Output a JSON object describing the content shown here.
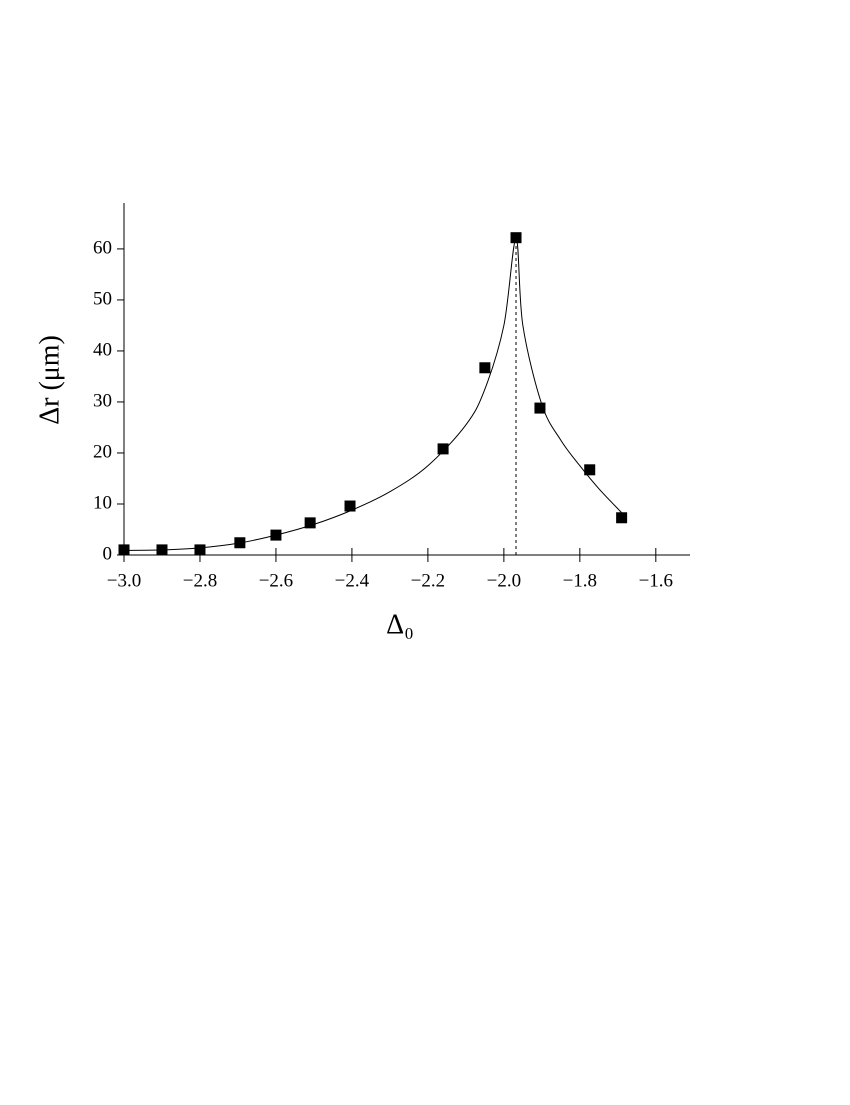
{
  "chart_data": {
    "type": "scatter",
    "x_label": "Δ₀",
    "y_label": "Δr (μm)",
    "xlim": [
      -3.0,
      -1.51
    ],
    "ylim": [
      0,
      69
    ],
    "xticks": [
      {
        "value": -3.0,
        "label": "−3.0"
      },
      {
        "value": -2.8,
        "label": "−2.8"
      },
      {
        "value": -2.6,
        "label": "−2.6"
      },
      {
        "value": -2.4,
        "label": "−2.4"
      },
      {
        "value": -2.2,
        "label": "−2.2"
      },
      {
        "value": -2.0,
        "label": "−2.0"
      },
      {
        "value": -1.8,
        "label": "−1.8"
      },
      {
        "value": -1.6,
        "label": "−1.6"
      }
    ],
    "yticks": [
      0,
      10,
      20,
      30,
      40,
      50,
      60
    ],
    "color": "#000000",
    "x": [
      -3.0,
      -2.9,
      -2.8,
      -2.695,
      -2.6,
      -2.51,
      -2.405,
      -2.16,
      -2.05,
      -1.968,
      -1.905,
      -1.774,
      -1.69
    ],
    "values": [
      1.0,
      1.0,
      1.0,
      2.4,
      3.9,
      6.3,
      9.6,
      20.8,
      36.7,
      62.2,
      28.8,
      16.7,
      7.3
    ],
    "fit": {
      "x": [
        -3.0,
        -2.9,
        -2.8,
        -2.7,
        -2.6,
        -2.5,
        -2.4,
        -2.3,
        -2.2,
        -2.1,
        -2.05,
        -2.0,
        -1.968,
        -1.95,
        -1.9,
        -1.85,
        -1.8,
        -1.75,
        -1.69
      ],
      "values": [
        0.9,
        1.0,
        1.4,
        2.3,
        3.9,
        6.0,
        8.8,
        12.4,
        17.5,
        25.5,
        32.5,
        45.0,
        62.0,
        45.0,
        29.5,
        22.5,
        17.5,
        13.0,
        8.3
      ]
    },
    "marker_line": {
      "x": -1.968,
      "y": 62.0
    }
  }
}
